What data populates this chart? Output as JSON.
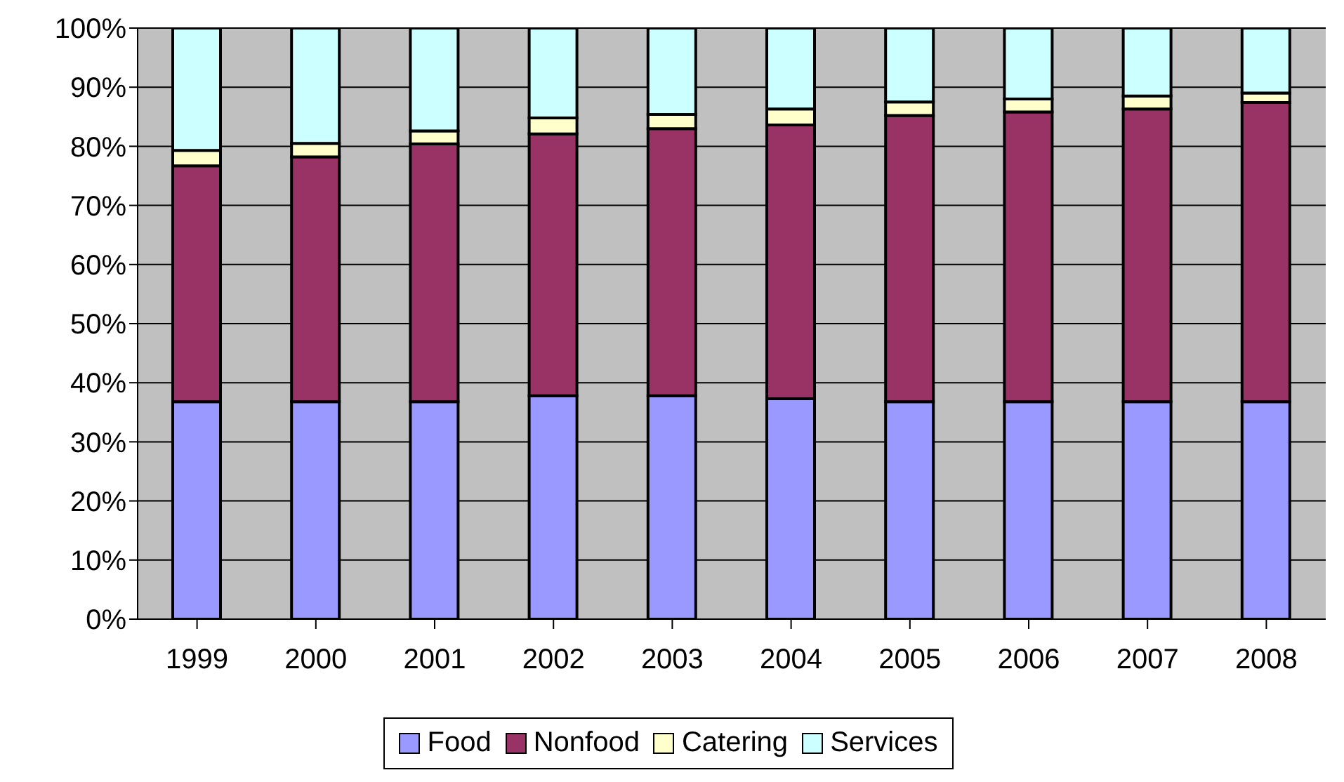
{
  "chart_data": {
    "type": "bar",
    "stacked": true,
    "categories": [
      "1999",
      "2000",
      "2001",
      "2002",
      "2003",
      "2004",
      "2005",
      "2006",
      "2007",
      "2008"
    ],
    "series": [
      {
        "name": "Food",
        "color": "#9999ff",
        "values": [
          36.8,
          36.8,
          36.8,
          37.8,
          37.8,
          37.3,
          36.8,
          36.8,
          36.8,
          36.8
        ]
      },
      {
        "name": "Nonfood",
        "color": "#993366",
        "values": [
          39.9,
          41.4,
          43.6,
          44.3,
          45.2,
          46.3,
          48.4,
          49,
          49.5,
          50.6
        ]
      },
      {
        "name": "Catering",
        "color": "#ffffcc",
        "values": [
          2.6,
          2.3,
          2.2,
          2.7,
          2.4,
          2.7,
          2.3,
          2.2,
          2.2,
          1.6
        ]
      },
      {
        "name": "Services",
        "color": "#ccffff",
        "values": [
          20.7,
          19.5,
          17.4,
          15.2,
          14.6,
          13.7,
          12.5,
          12,
          11.5,
          11
        ]
      }
    ],
    "ylim": [
      0,
      100
    ],
    "yticks": [
      {
        "value": 0,
        "label": "0%"
      },
      {
        "value": 10,
        "label": "10%"
      },
      {
        "value": 20,
        "label": "20%"
      },
      {
        "value": 30,
        "label": "30%"
      },
      {
        "value": 40,
        "label": "40%"
      },
      {
        "value": 50,
        "label": "50%"
      },
      {
        "value": 60,
        "label": "60%"
      },
      {
        "value": 70,
        "label": "70%"
      },
      {
        "value": 80,
        "label": "80%"
      },
      {
        "value": 90,
        "label": "90%"
      },
      {
        "value": 100,
        "label": "100%"
      }
    ],
    "grid": "y",
    "legend": "bottom"
  }
}
